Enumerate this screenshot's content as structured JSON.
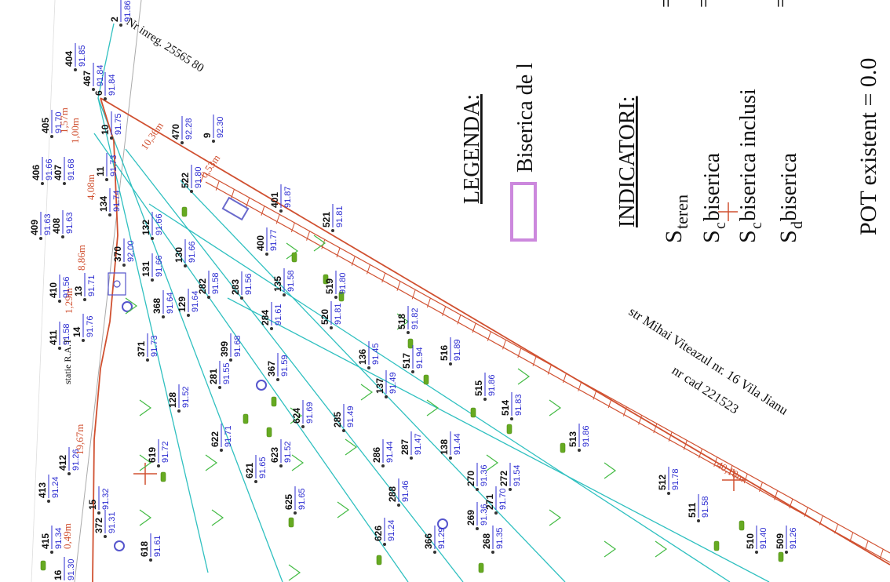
{
  "map": {
    "title": "",
    "legend": {
      "heading": "LEGENDA:",
      "item_label": "Biserica de l",
      "item_color": "#cc88dd"
    },
    "indicatori": {
      "heading": "INDICATORI:",
      "rows": [
        {
          "label": "S",
          "sub": "teren",
          "eq": "="
        },
        {
          "label": "S",
          "sub": "c",
          "tail": " biserica",
          "eq": "="
        },
        {
          "label": "S",
          "sub": "c",
          "tail": " biserica inclusi",
          "eq": "="
        },
        {
          "label": "S",
          "sub": "d",
          "tail": " biserica",
          "eq": "="
        }
      ],
      "pot": "POT existent = 0.0"
    },
    "street_labels": [
      "str Mihai Viteazul nr. 16 Vila Jianu",
      "nr cad 221523",
      "Nr inreg. 25565 80",
      "statie R.A.T"
    ],
    "dimensions": [
      "10,36m",
      "0,53m",
      "1,57m",
      "1,00m",
      "4,08m",
      "8,86m",
      "1,29m",
      "19,67m",
      "0,49m",
      "40,18m"
    ],
    "colors": {
      "boundary": "#d05030",
      "contour": "#30c0c0",
      "elevation_text": "#2b2bd0",
      "arrows": "#44bb44",
      "tree": "#66aa22"
    },
    "points": [
      {
        "id": "2",
        "elev": "91.86"
      },
      {
        "id": "404",
        "elev": "91.85"
      },
      {
        "id": "467",
        "elev": "91.84"
      },
      {
        "id": "6",
        "elev": "91.84"
      },
      {
        "id": "405",
        "elev": "91.70"
      },
      {
        "id": "10",
        "elev": "91.75"
      },
      {
        "id": "470",
        "elev": "92.28"
      },
      {
        "id": "9",
        "elev": "92.30"
      },
      {
        "id": "406",
        "elev": "91.66"
      },
      {
        "id": "407",
        "elev": "91.68"
      },
      {
        "id": "11",
        "elev": "91.73"
      },
      {
        "id": "522",
        "elev": "91.80"
      },
      {
        "id": "409",
        "elev": "91.63"
      },
      {
        "id": "408",
        "elev": "91.63"
      },
      {
        "id": "134",
        "elev": "91.74"
      },
      {
        "id": "132",
        "elev": "91.66"
      },
      {
        "id": "401",
        "elev": "91.87"
      },
      {
        "id": "521",
        "elev": "91.81"
      },
      {
        "id": "370",
        "elev": "92.00"
      },
      {
        "id": "410",
        "elev": "91.56"
      },
      {
        "id": "13",
        "elev": "91.71"
      },
      {
        "id": "131",
        "elev": "91.66"
      },
      {
        "id": "130",
        "elev": "91.66"
      },
      {
        "id": "400",
        "elev": "91.77"
      },
      {
        "id": "282",
        "elev": "91.58"
      },
      {
        "id": "283",
        "elev": "91.56"
      },
      {
        "id": "135",
        "elev": "91.58"
      },
      {
        "id": "519",
        "elev": "91.80"
      },
      {
        "id": "368",
        "elev": "91.64"
      },
      {
        "id": "129",
        "elev": "91.64"
      },
      {
        "id": "520",
        "elev": "91.81"
      },
      {
        "id": "411",
        "elev": "91.58"
      },
      {
        "id": "14",
        "elev": "91.76"
      },
      {
        "id": "284",
        "elev": "91.61"
      },
      {
        "id": "518",
        "elev": "91.82"
      },
      {
        "id": "371",
        "elev": "91.73"
      },
      {
        "id": "399",
        "elev": "91.68"
      },
      {
        "id": "136",
        "elev": "91.45"
      },
      {
        "id": "517",
        "elev": "91.94"
      },
      {
        "id": "516",
        "elev": "91.89"
      },
      {
        "id": "281",
        "elev": "91.55"
      },
      {
        "id": "367",
        "elev": "91.59"
      },
      {
        "id": "137",
        "elev": "91.49"
      },
      {
        "id": "515",
        "elev": "91.86"
      },
      {
        "id": "128",
        "elev": "91.52"
      },
      {
        "id": "514",
        "elev": "91.83"
      },
      {
        "id": "285",
        "elev": "91.49"
      },
      {
        "id": "622",
        "elev": "91.71"
      },
      {
        "id": "624",
        "elev": "91.69"
      },
      {
        "id": "513",
        "elev": "91.86"
      },
      {
        "id": "412",
        "elev": "91.26"
      },
      {
        "id": "619",
        "elev": "91.72"
      },
      {
        "id": "623",
        "elev": "91.52"
      },
      {
        "id": "286",
        "elev": "91.44"
      },
      {
        "id": "287",
        "elev": "91.47"
      },
      {
        "id": "138",
        "elev": "91.44"
      },
      {
        "id": "413",
        "elev": "91.24"
      },
      {
        "id": "621",
        "elev": "91.65"
      },
      {
        "id": "270",
        "elev": "91.36"
      },
      {
        "id": "272",
        "elev": "91.54"
      },
      {
        "id": "15",
        "elev": "91.32"
      },
      {
        "id": "625",
        "elev": "91.65"
      },
      {
        "id": "288",
        "elev": "91.46"
      },
      {
        "id": "512",
        "elev": "91.78"
      },
      {
        "id": "271",
        "elev": "91.70"
      },
      {
        "id": "372",
        "elev": "91.31"
      },
      {
        "id": "269",
        "elev": "91.36"
      },
      {
        "id": "511",
        "elev": "91.58"
      },
      {
        "id": "415",
        "elev": "91.34"
      },
      {
        "id": "618",
        "elev": "91.61"
      },
      {
        "id": "626",
        "elev": "91.24"
      },
      {
        "id": "366",
        "elev": "91.29"
      },
      {
        "id": "268",
        "elev": "91.35"
      },
      {
        "id": "510",
        "elev": "91.40"
      },
      {
        "id": "509",
        "elev": "91.26"
      },
      {
        "id": "16",
        "elev": "91.30"
      }
    ]
  }
}
